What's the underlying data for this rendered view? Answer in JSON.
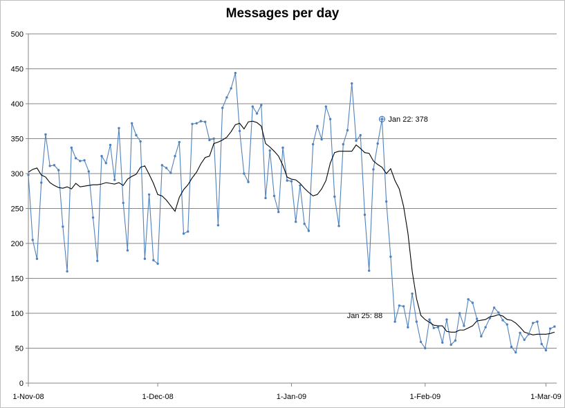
{
  "chart_data": {
    "type": "line",
    "title": "Messages per day",
    "xlabel": "",
    "ylabel": "",
    "ylim": [
      0,
      500
    ],
    "y_ticks": [
      "0",
      "50",
      "100",
      "150",
      "200",
      "250",
      "300",
      "350",
      "400",
      "450",
      "500"
    ],
    "x_tick_labels": [
      {
        "label": "1-Nov-08",
        "date": "2008-11-01"
      },
      {
        "label": "1-Dec-08",
        "date": "2008-12-01"
      },
      {
        "label": "1-Jan-09",
        "date": "2009-01-01"
      },
      {
        "label": "1-Feb-09",
        "date": "2009-02-01"
      },
      {
        "label": "1-Mar-09",
        "date": "2009-03-01"
      }
    ],
    "grid": "horizontal",
    "legend": "none",
    "colors": {
      "daily": "#4f81bd",
      "average": "#000000",
      "gridline": "#868686"
    },
    "series": [
      {
        "style": "markers-line",
        "x": [
          "2008-11-01",
          "2008-11-02",
          "2008-11-03",
          "2008-11-04",
          "2008-11-05",
          "2008-11-06",
          "2008-11-07",
          "2008-11-08",
          "2008-11-09",
          "2008-11-10",
          "2008-11-11",
          "2008-11-12",
          "2008-11-13",
          "2008-11-14",
          "2008-11-15",
          "2008-11-16",
          "2008-11-17",
          "2008-11-18",
          "2008-11-19",
          "2008-11-20",
          "2008-11-21",
          "2008-11-22",
          "2008-11-23",
          "2008-11-24",
          "2008-11-25",
          "2008-11-26",
          "2008-11-27",
          "2008-11-28",
          "2008-11-29",
          "2008-11-30",
          "2008-12-01",
          "2008-12-02",
          "2008-12-03",
          "2008-12-04",
          "2008-12-05",
          "2008-12-06",
          "2008-12-07",
          "2008-12-08",
          "2008-12-09",
          "2008-12-10",
          "2008-12-11",
          "2008-12-12",
          "2008-12-13",
          "2008-12-14",
          "2008-12-15",
          "2008-12-16",
          "2008-12-17",
          "2008-12-18",
          "2008-12-19",
          "2008-12-20",
          "2008-12-21",
          "2008-12-22",
          "2008-12-23",
          "2008-12-24",
          "2008-12-25",
          "2008-12-26",
          "2008-12-27",
          "2008-12-28",
          "2008-12-29",
          "2008-12-30",
          "2008-12-31",
          "2009-01-01",
          "2009-01-02",
          "2009-01-03",
          "2009-01-04",
          "2009-01-05",
          "2009-01-06",
          "2009-01-07",
          "2009-01-08",
          "2009-01-09",
          "2009-01-10",
          "2009-01-11",
          "2009-01-12",
          "2009-01-13",
          "2009-01-14",
          "2009-01-15",
          "2009-01-16",
          "2009-01-17",
          "2009-01-18",
          "2009-01-19",
          "2009-01-20",
          "2009-01-21",
          "2009-01-22",
          "2009-01-23",
          "2009-01-24",
          "2009-01-25",
          "2009-01-26",
          "2009-01-27",
          "2009-01-28",
          "2009-01-29",
          "2009-01-30",
          "2009-01-31",
          "2009-02-01",
          "2009-02-02",
          "2009-02-03",
          "2009-02-04",
          "2009-02-05",
          "2009-02-06",
          "2009-02-07",
          "2009-02-08",
          "2009-02-09",
          "2009-02-10",
          "2009-02-11",
          "2009-02-12",
          "2009-02-13",
          "2009-02-14",
          "2009-02-15",
          "2009-02-16",
          "2009-02-17",
          "2009-02-18",
          "2009-02-19",
          "2009-02-20",
          "2009-02-21",
          "2009-02-22",
          "2009-02-23",
          "2009-02-24",
          "2009-02-25",
          "2009-02-26",
          "2009-02-27",
          "2009-02-28",
          "2009-03-01",
          "2009-03-02",
          "2009-03-03"
        ],
        "values": [
          298,
          205,
          178,
          287,
          356,
          311,
          312,
          305,
          224,
          160,
          337,
          322,
          318,
          319,
          303,
          237,
          175,
          325,
          315,
          341,
          291,
          365,
          258,
          190,
          372,
          355,
          346,
          178,
          270,
          176,
          171,
          312,
          308,
          301,
          325,
          345,
          214,
          217,
          371,
          372,
          375,
          374,
          348,
          350,
          226,
          394,
          409,
          422,
          444,
          361,
          300,
          288,
          396,
          386,
          398,
          265,
          333,
          268,
          245,
          337,
          290,
          289,
          231,
          283,
          228,
          218,
          342,
          368,
          349,
          396,
          378,
          267,
          225,
          342,
          362,
          429,
          347,
          355,
          241,
          161,
          306,
          343,
          378,
          260,
          181,
          88,
          111,
          110,
          80,
          128,
          88,
          59,
          50,
          91,
          79,
          80,
          58,
          91,
          55,
          61,
          100,
          82,
          120,
          115,
          92,
          67,
          80,
          93,
          108,
          101,
          90,
          84,
          52,
          44,
          72,
          62,
          70,
          86,
          88,
          56,
          47,
          78,
          81
        ]
      },
      {
        "style": "line",
        "x": [
          "2008-11-01",
          "2008-11-02",
          "2008-11-03",
          "2008-11-04",
          "2008-11-05",
          "2008-11-06",
          "2008-11-07",
          "2008-11-08",
          "2008-11-09",
          "2008-11-10",
          "2008-11-11",
          "2008-11-12",
          "2008-11-13",
          "2008-11-14",
          "2008-11-15",
          "2008-11-16",
          "2008-11-17",
          "2008-11-18",
          "2008-11-19",
          "2008-11-20",
          "2008-11-21",
          "2008-11-22",
          "2008-11-23",
          "2008-11-24",
          "2008-11-25",
          "2008-11-26",
          "2008-11-27",
          "2008-11-28",
          "2008-11-29",
          "2008-11-30",
          "2008-12-01",
          "2008-12-02",
          "2008-12-03",
          "2008-12-04",
          "2008-12-05",
          "2008-12-06",
          "2008-12-07",
          "2008-12-08",
          "2008-12-09",
          "2008-12-10",
          "2008-12-11",
          "2008-12-12",
          "2008-12-13",
          "2008-12-14",
          "2008-12-15",
          "2008-12-16",
          "2008-12-17",
          "2008-12-18",
          "2008-12-19",
          "2008-12-20",
          "2008-12-21",
          "2008-12-22",
          "2008-12-23",
          "2008-12-24",
          "2008-12-25",
          "2008-12-26",
          "2008-12-27",
          "2008-12-28",
          "2008-12-29",
          "2008-12-30",
          "2008-12-31",
          "2009-01-01",
          "2009-01-02",
          "2009-01-03",
          "2009-01-04",
          "2009-01-05",
          "2009-01-06",
          "2009-01-07",
          "2009-01-08",
          "2009-01-09",
          "2009-01-10",
          "2009-01-11",
          "2009-01-12",
          "2009-01-13",
          "2009-01-14",
          "2009-01-15",
          "2009-01-16",
          "2009-01-17",
          "2009-01-18",
          "2009-01-19",
          "2009-01-20",
          "2009-01-21",
          "2009-01-22",
          "2009-01-23",
          "2009-01-24",
          "2009-01-25",
          "2009-01-26",
          "2009-01-27",
          "2009-01-28",
          "2009-01-29",
          "2009-01-30",
          "2009-01-31",
          "2009-02-01",
          "2009-02-02",
          "2009-02-03",
          "2009-02-04",
          "2009-02-05",
          "2009-02-06",
          "2009-02-07",
          "2009-02-08",
          "2009-02-09",
          "2009-02-10",
          "2009-02-11",
          "2009-02-12",
          "2009-02-13",
          "2009-02-14",
          "2009-02-15",
          "2009-02-16",
          "2009-02-17",
          "2009-02-18",
          "2009-02-19",
          "2009-02-20",
          "2009-02-21",
          "2009-02-22",
          "2009-02-23",
          "2009-02-24",
          "2009-02-25",
          "2009-02-26",
          "2009-02-27",
          "2009-02-28",
          "2009-03-01",
          "2009-03-02",
          "2009-03-03"
        ],
        "values": [
          302,
          306,
          308,
          298,
          295,
          287,
          283,
          280,
          279,
          281,
          278,
          286,
          281,
          282,
          283,
          284,
          284,
          285,
          287,
          286,
          285,
          287,
          283,
          292,
          296,
          299,
          309,
          311,
          299,
          286,
          270,
          268,
          262,
          254,
          246,
          266,
          277,
          284,
          294,
          302,
          314,
          323,
          325,
          343,
          345,
          348,
          352,
          360,
          370,
          372,
          364,
          374,
          375,
          373,
          368,
          343,
          338,
          332,
          325,
          312,
          295,
          292,
          291,
          286,
          279,
          273,
          268,
          270,
          278,
          290,
          315,
          330,
          332,
          332,
          332,
          332,
          341,
          336,
          330,
          329,
          318,
          313,
          309,
          300,
          307,
          290,
          278,
          253,
          215,
          160,
          121,
          97,
          91,
          87,
          83,
          82,
          82,
          74,
          73,
          73,
          76,
          76,
          79,
          82,
          89,
          90,
          91,
          95,
          96,
          98,
          96,
          91,
          90,
          86,
          80,
          73,
          71,
          69,
          70,
          70,
          70,
          71,
          73
        ]
      }
    ],
    "annotations": [
      {
        "label": "Jan 22: 378",
        "date": "2009-01-22",
        "value": 378
      },
      {
        "label": "Jan 25: 88",
        "date": "2009-01-25",
        "value": 88
      }
    ]
  }
}
